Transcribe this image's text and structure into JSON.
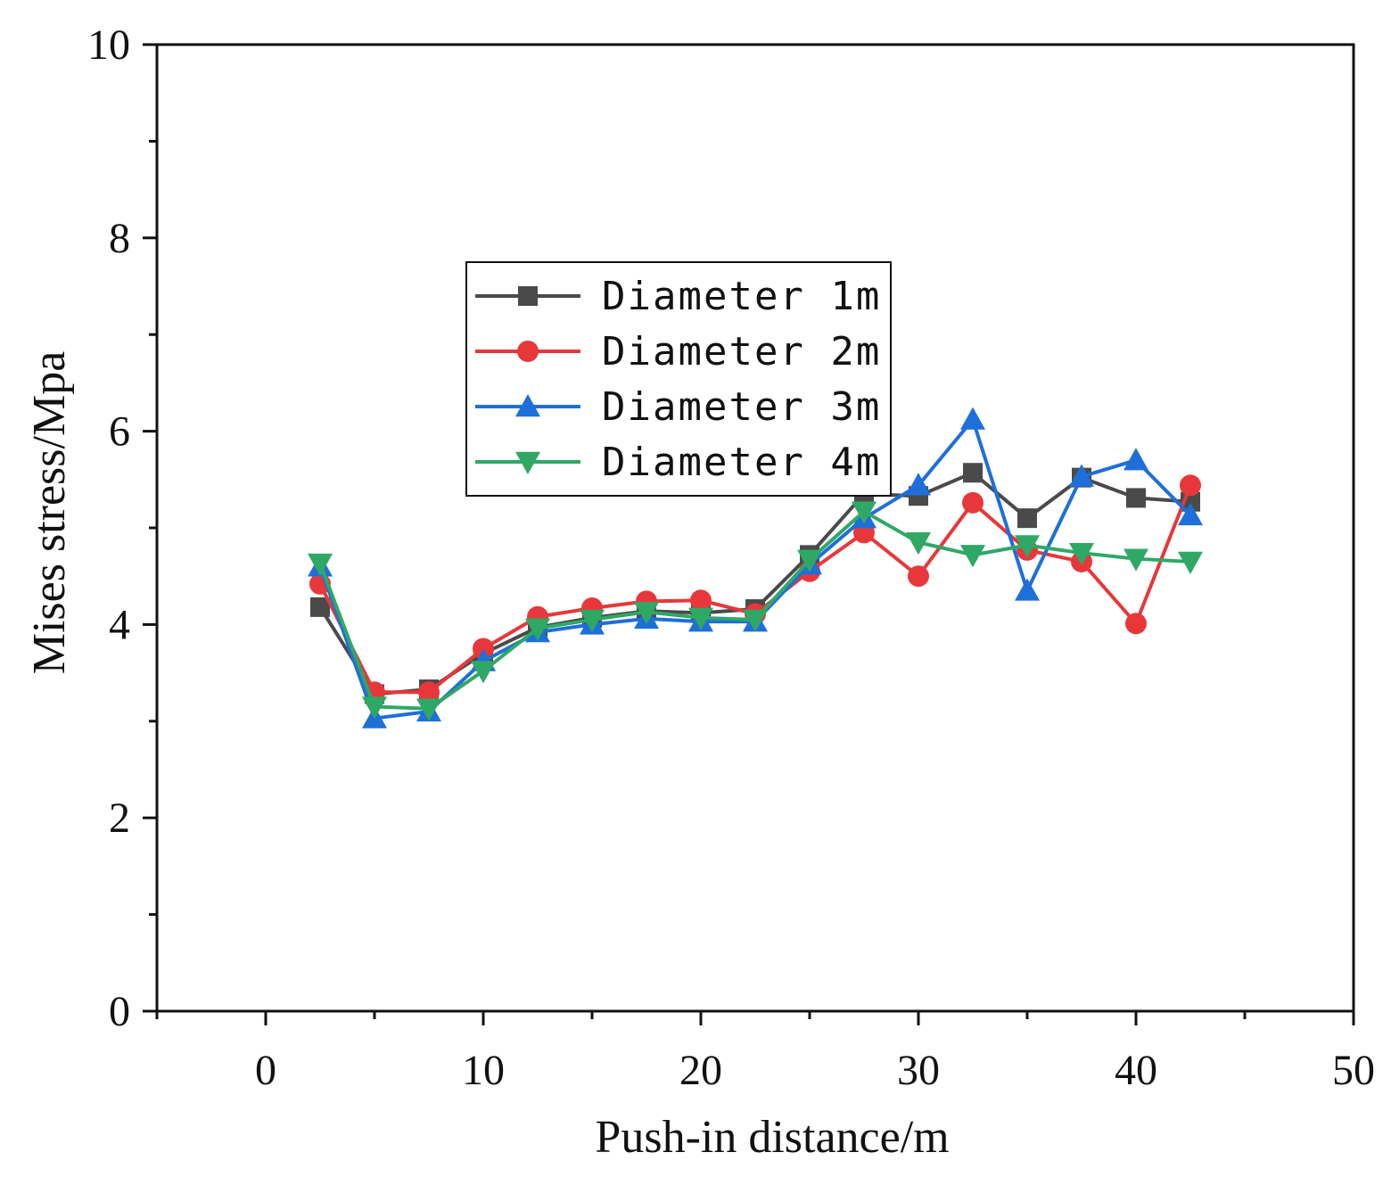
{
  "chart_data": {
    "type": "line",
    "title": "",
    "xlabel": "Push-in distance/m",
    "ylabel": "Mises stress/Mpa",
    "xlim": [
      -5,
      50
    ],
    "ylim": [
      0,
      10
    ],
    "xticks": [
      0,
      10,
      20,
      30,
      40,
      50
    ],
    "yticks": [
      0,
      2,
      4,
      6,
      8,
      10
    ],
    "xtick_labels": [
      "0",
      "10",
      "20",
      "30",
      "40",
      "50"
    ],
    "ytick_labels": [
      "0",
      "2",
      "4",
      "6",
      "8",
      "10"
    ],
    "grid": false,
    "legend_position": "center",
    "x": [
      2.5,
      5,
      7.5,
      10,
      12.5,
      15,
      17.5,
      20,
      22.5,
      25,
      27.5,
      30,
      32.5,
      35,
      37.5,
      40,
      42.5
    ],
    "series": [
      {
        "name": "Diameter 1m",
        "color": "#4a4a4a",
        "marker": "square",
        "values": [
          4.18,
          3.28,
          3.33,
          3.7,
          3.97,
          4.07,
          4.14,
          4.12,
          4.16,
          4.72,
          5.35,
          5.33,
          5.57,
          5.1,
          5.52,
          5.31,
          5.27
        ]
      },
      {
        "name": "Diameter 2m",
        "color": "#e8373a",
        "marker": "circle",
        "values": [
          4.42,
          3.3,
          3.3,
          3.75,
          4.08,
          4.17,
          4.24,
          4.25,
          4.11,
          4.55,
          4.95,
          4.5,
          5.26,
          4.77,
          4.65,
          4.01,
          5.44
        ]
      },
      {
        "name": "Diameter 3m",
        "color": "#1e6fd9",
        "marker": "triangle-up",
        "values": [
          4.6,
          3.03,
          3.1,
          3.62,
          3.92,
          4.0,
          4.06,
          4.03,
          4.03,
          4.62,
          5.1,
          5.44,
          6.12,
          4.35,
          5.53,
          5.7,
          5.13
        ]
      },
      {
        "name": "Diameter 4m",
        "color": "#2fa866",
        "marker": "triangle-down",
        "values": [
          4.63,
          3.15,
          3.13,
          3.52,
          3.96,
          4.05,
          4.13,
          4.07,
          4.05,
          4.67,
          5.17,
          4.85,
          4.72,
          4.82,
          4.74,
          4.68,
          4.65
        ]
      }
    ]
  }
}
